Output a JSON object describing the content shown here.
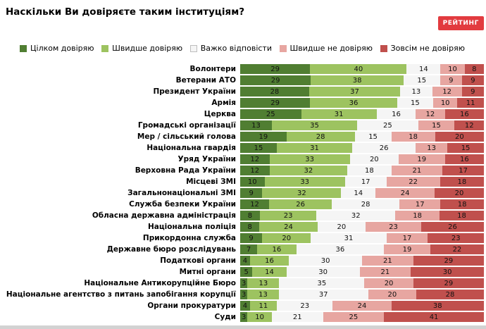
{
  "title": "Наскільки Ви довіряєте таким інституціям?",
  "logo_text": "РЕЙТИНГ",
  "colors": {
    "logo_bg": "#e23b3f",
    "trust_full": "#507e32",
    "trust_rather": "#9dc360",
    "neutral": "#f5f5f5",
    "distrust_rather": "#e7a6a1",
    "distrust_full": "#c0504d"
  },
  "chart_data": {
    "type": "bar",
    "orientation": "horizontal",
    "stacked": true,
    "unit": "percent",
    "title": "Наскільки Ви довіряєте таким інституціям?",
    "legend_position": "top",
    "xlim": [
      0,
      100
    ],
    "grid": false,
    "categories": [
      "Волонтери",
      "Ветерани АТО",
      "Президент України",
      "Армія",
      "Церква",
      "Громадські організації",
      "Мер / сільський голова",
      "Національна гвардія",
      "Уряд України",
      "Верховна Рада України",
      "Місцеві ЗМІ",
      "Загальнонаціональні ЗМІ",
      "Служба безпеки України",
      "Обласна державна адміністрація",
      "Національна поліція",
      "Прикордонна служба",
      "Державне бюро розслідувань",
      "Податкові органи",
      "Митні органи",
      "Національне Антикорупційне Бюро",
      "Національне агентство з питань запобігання корупції",
      "Органи прокуратури",
      "Суди"
    ],
    "series": [
      {
        "name": "Цілком довіряю",
        "color": "#507e32",
        "values": [
          29,
          29,
          28,
          29,
          25,
          13,
          19,
          15,
          12,
          12,
          10,
          9,
          12,
          8,
          8,
          9,
          7,
          4,
          5,
          3,
          3,
          4,
          3
        ]
      },
      {
        "name": "Швидше довіряю",
        "color": "#9dc360",
        "values": [
          40,
          38,
          37,
          36,
          31,
          35,
          28,
          31,
          33,
          32,
          33,
          32,
          26,
          23,
          24,
          20,
          16,
          16,
          14,
          13,
          13,
          11,
          10
        ]
      },
      {
        "name": "Важко відповісти",
        "color": "#f5f5f5",
        "border": "#bdbdbd",
        "values": [
          14,
          15,
          13,
          15,
          16,
          25,
          15,
          26,
          20,
          18,
          17,
          14,
          28,
          32,
          20,
          31,
          36,
          30,
          30,
          35,
          37,
          23,
          21
        ]
      },
      {
        "name": "Швидше не довіряю",
        "color": "#e7a6a1",
        "values": [
          10,
          9,
          12,
          10,
          12,
          15,
          18,
          13,
          19,
          21,
          22,
          24,
          17,
          18,
          23,
          17,
          19,
          21,
          21,
          20,
          20,
          24,
          25
        ]
      },
      {
        "name": "Зовсім не довіряю",
        "color": "#c0504d",
        "values": [
          8,
          9,
          9,
          11,
          16,
          12,
          20,
          15,
          16,
          17,
          18,
          20,
          18,
          18,
          26,
          23,
          22,
          29,
          30,
          29,
          28,
          38,
          41
        ]
      }
    ]
  }
}
